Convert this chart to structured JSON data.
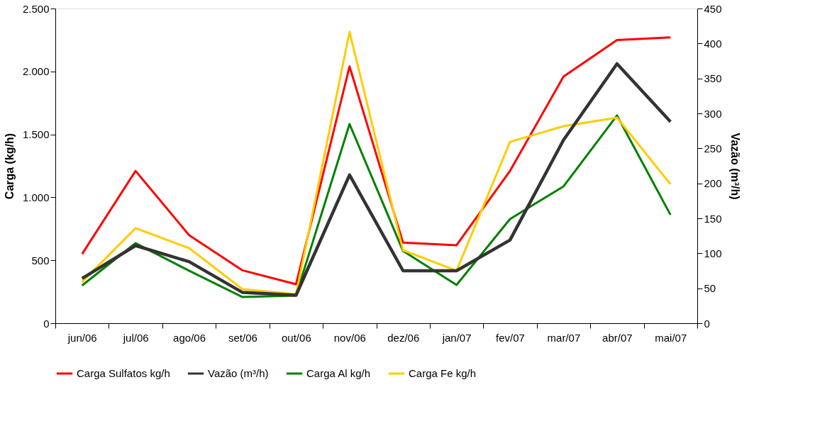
{
  "chart_data": {
    "type": "line",
    "categories": [
      "jun/06",
      "jul/06",
      "ago/06",
      "set/06",
      "out/06",
      "nov/06",
      "dez/06",
      "jan/07",
      "fev/07",
      "mar/07",
      "abr/07",
      "mai/07"
    ],
    "ylabel": "Carga (kg/h)",
    "y2label": "Vazão (m³/h)",
    "ylim": [
      0,
      2500
    ],
    "yticks": [
      0,
      500,
      {
        "value": 1000,
        "label": "1.000"
      },
      {
        "value": 1500,
        "label": "1.500"
      },
      {
        "value": 2000,
        "label": "2.000"
      },
      {
        "value": 2500,
        "label": "2.500"
      }
    ],
    "y2lim": [
      0,
      450
    ],
    "y2ticks": [
      0,
      50,
      100,
      150,
      200,
      250,
      300,
      350,
      400,
      450
    ],
    "grid": false,
    "legend": "bottom",
    "marker": "none",
    "line_style": "solid",
    "series": [
      {
        "name": "Carga Sulfatos kg/h",
        "color": "#ff0000",
        "values": [
          550,
          1210,
          700,
          420,
          310,
          2040,
          640,
          620,
          1210,
          1960,
          2250,
          2270
        ]
      },
      {
        "name": "Vazão (m³/h)",
        "color": "#333333",
        "axis": "y2",
        "values": [
          64,
          111,
          88,
          44,
          40,
          212,
          75,
          75,
          119,
          262,
          371,
          288
        ]
      },
      {
        "name": "Carga Al kg/h",
        "color": "#008000",
        "values": [
          300,
          636,
          417,
          208,
          220,
          1582,
          574,
          304,
          828,
          1087,
          1650,
          861
        ]
      },
      {
        "name": "Carga Fe kg/h",
        "color": "#ffcc00",
        "values": [
          327,
          755,
          597,
          270,
          231,
          2314,
          580,
          417,
          1441,
          1565,
          1633,
          1104
        ]
      }
    ]
  }
}
